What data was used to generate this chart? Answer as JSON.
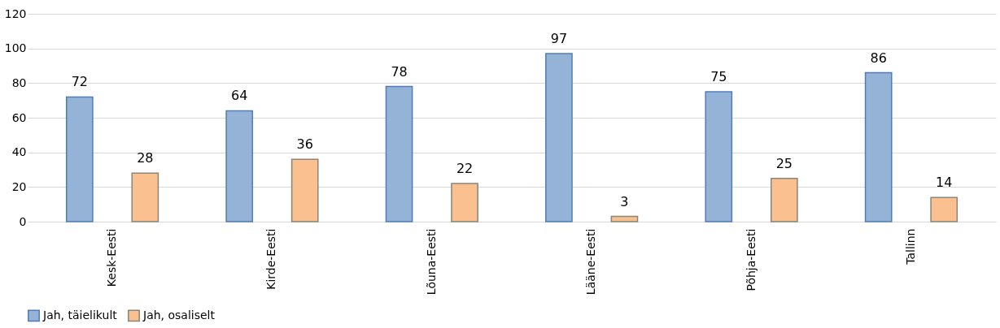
{
  "chart_data": {
    "type": "bar",
    "categories": [
      "Kesk-Eesti",
      "Kirde-Eesti",
      "Lõuna-Eesti",
      "Lääne-Eesti",
      "Põhja-Eesti",
      "Tallinn"
    ],
    "series": [
      {
        "name": "Jah, täielikult",
        "color": "#95b3d7",
        "values": [
          72,
          64,
          78,
          97,
          75,
          86
        ]
      },
      {
        "name": "Jah, osaliselt",
        "color": "#fac090",
        "values": [
          28,
          36,
          22,
          3,
          25,
          14
        ]
      }
    ],
    "ylim": [
      0,
      120
    ],
    "yticks": [
      0,
      20,
      40,
      60,
      80,
      100,
      120
    ],
    "grid": "y",
    "legend": "bottom",
    "data_labels": true
  }
}
